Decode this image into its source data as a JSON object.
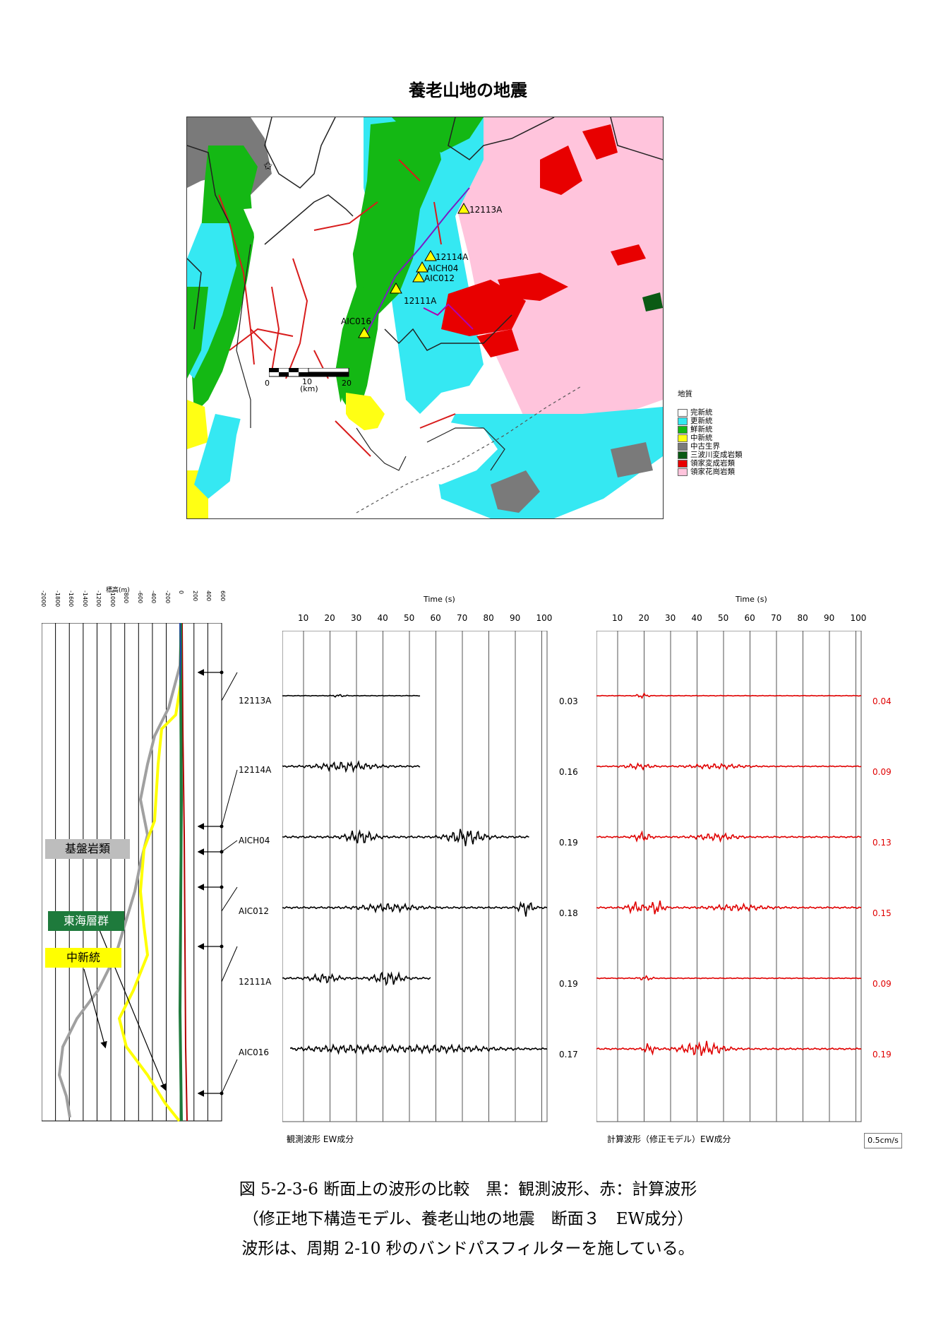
{
  "map": {
    "title": "養老山地の地震",
    "stations": [
      {
        "id": "12113A"
      },
      {
        "id": "12114A"
      },
      {
        "id": "AICH04"
      },
      {
        "id": "AIC012"
      },
      {
        "id": "12111A"
      },
      {
        "id": "AIC016"
      }
    ],
    "scale": {
      "ticks": [
        "0",
        "10",
        "20"
      ],
      "unit": "(km)"
    },
    "legend": {
      "title": "地質",
      "items": [
        {
          "label": "完新統",
          "color": "#ffffff"
        },
        {
          "label": "更新統",
          "color": "#35e8f2"
        },
        {
          "label": "鮮新統",
          "color": "#14b814"
        },
        {
          "label": "中新統",
          "color": "#ffff14"
        },
        {
          "label": "中古生界",
          "color": "#7a7a7a"
        },
        {
          "label": "三波川変成岩類",
          "color": "#0a5a14"
        },
        {
          "label": "領家変成岩類",
          "color": "#e80000"
        },
        {
          "label": "領家花崗岩類",
          "color": "#ffc4dc"
        }
      ]
    }
  },
  "profile": {
    "axis_title": "標高(m)",
    "ticks": [
      "-2000",
      "-1800",
      "-1600",
      "-1400",
      "-1200",
      "-1000",
      "-800",
      "-600",
      "-400",
      "-200",
      "0",
      "200",
      "400",
      "600"
    ],
    "labels": {
      "basement": "基盤岩類",
      "tokai": "東海層群",
      "miocene": "中新統"
    },
    "colors": {
      "basement": "#a0a0a0",
      "tokai": "#1e7a3c",
      "miocene": "#ffff00"
    }
  },
  "waveforms": {
    "time_title": "Time (s)",
    "time_ticks": [
      "10",
      "20",
      "30",
      "40",
      "50",
      "60",
      "70",
      "80",
      "90",
      "100"
    ],
    "observed_title": "観測波形 EW成分",
    "computed_title": "計算波形（修正モデル）EW成分",
    "scale_label": "0.5cm/s",
    "stations": [
      "12113A",
      "12114A",
      "AICH04",
      "AIC012",
      "12111A",
      "AIC016"
    ],
    "observed_amplitudes": [
      "0.03",
      "0.16",
      "0.19",
      "0.18",
      "0.19",
      "0.17"
    ],
    "computed_amplitudes": [
      "0.04",
      "0.09",
      "0.13",
      "0.15",
      "0.09",
      "0.19"
    ],
    "observed_color": "#000000",
    "computed_color": "#e00000"
  },
  "caption": {
    "line1": "図 5-2-3-6 断面上の波形の比較　黒：観測波形、赤：計算波形",
    "line2": "（修正地下構造モデル、養老山地の地震　断面３　EW成分）",
    "line3": "波形は、周期 2-10 秒のバンドパスフィルターを施している。"
  }
}
